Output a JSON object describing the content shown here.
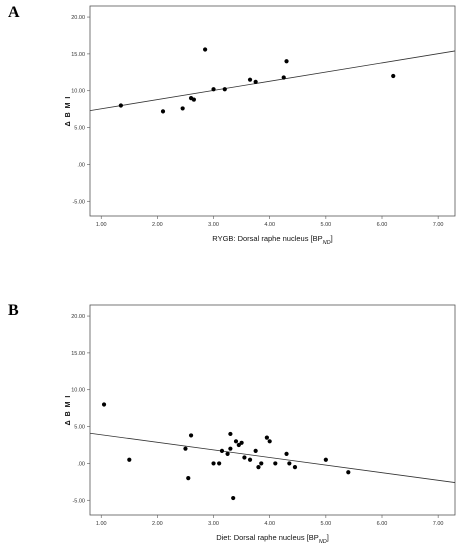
{
  "chart_data": [
    {
      "panel_letter": "A",
      "type": "scatter",
      "xlabel": "RYGB: Dorsal raphe nucleus [BP",
      "xlabel_sub": "ND",
      "xlabel_end": "]",
      "ylabel": "Δ B M I",
      "xlim": [
        0.8,
        7.3
      ],
      "ylim": [
        -7.0,
        21.5
      ],
      "xticks": [
        1.0,
        2.0,
        3.0,
        4.0,
        5.0,
        6.0,
        7.0
      ],
      "xtick_labels": [
        "1.00",
        "2.00",
        "3.00",
        "4.00",
        "5.00",
        "6.00",
        "7.00"
      ],
      "yticks": [
        -5.0,
        0.0,
        5.0,
        10.0,
        15.0,
        20.0
      ],
      "ytick_labels": [
        "-5.00",
        ".00",
        "5.00",
        "10.00",
        "15.00",
        "20.00"
      ],
      "points": [
        {
          "x": 1.35,
          "y": 8.0
        },
        {
          "x": 2.1,
          "y": 7.2
        },
        {
          "x": 2.45,
          "y": 7.6
        },
        {
          "x": 2.6,
          "y": 9.0
        },
        {
          "x": 2.65,
          "y": 8.8
        },
        {
          "x": 2.85,
          "y": 15.6
        },
        {
          "x": 3.0,
          "y": 10.2
        },
        {
          "x": 3.2,
          "y": 10.2
        },
        {
          "x": 3.65,
          "y": 11.5
        },
        {
          "x": 3.75,
          "y": 11.2
        },
        {
          "x": 4.25,
          "y": 11.8
        },
        {
          "x": 4.3,
          "y": 14.0
        },
        {
          "x": 6.2,
          "y": 12.0
        }
      ],
      "fit_line": {
        "x": [
          0.8,
          7.3
        ],
        "y": [
          7.3,
          15.4
        ]
      }
    },
    {
      "panel_letter": "B",
      "type": "scatter",
      "xlabel": "Diet: Dorsal raphe nucleus [BP",
      "xlabel_sub": "ND",
      "xlabel_end": "]",
      "ylabel": "Δ B M I",
      "xlim": [
        0.8,
        7.3
      ],
      "ylim": [
        -7.0,
        21.5
      ],
      "xticks": [
        1.0,
        2.0,
        3.0,
        4.0,
        5.0,
        6.0,
        7.0
      ],
      "xtick_labels": [
        "1.00",
        "2.00",
        "3.00",
        "4.00",
        "5.00",
        "6.00",
        "7.00"
      ],
      "yticks": [
        -5.0,
        0.0,
        5.0,
        10.0,
        15.0,
        20.0
      ],
      "ytick_labels": [
        "-5.00",
        ".00",
        "5.00",
        "10.00",
        "15.00",
        "20.00"
      ],
      "points": [
        {
          "x": 1.05,
          "y": 8.0
        },
        {
          "x": 1.5,
          "y": 0.5
        },
        {
          "x": 2.5,
          "y": 2.0
        },
        {
          "x": 2.55,
          "y": -2.0
        },
        {
          "x": 2.6,
          "y": 3.8
        },
        {
          "x": 3.0,
          "y": 0.0
        },
        {
          "x": 3.1,
          "y": 0.0
        },
        {
          "x": 3.15,
          "y": 1.7
        },
        {
          "x": 3.25,
          "y": 1.3
        },
        {
          "x": 3.3,
          "y": 2.0
        },
        {
          "x": 3.3,
          "y": 4.0
        },
        {
          "x": 3.35,
          "y": -4.7
        },
        {
          "x": 3.4,
          "y": 3.0
        },
        {
          "x": 3.45,
          "y": 2.5
        },
        {
          "x": 3.5,
          "y": 2.8
        },
        {
          "x": 3.55,
          "y": 0.8
        },
        {
          "x": 3.65,
          "y": 0.5
        },
        {
          "x": 3.75,
          "y": 1.7
        },
        {
          "x": 3.8,
          "y": -0.5
        },
        {
          "x": 3.85,
          "y": 0.0
        },
        {
          "x": 3.95,
          "y": 3.5
        },
        {
          "x": 4.0,
          "y": 3.0
        },
        {
          "x": 4.1,
          "y": 0.0
        },
        {
          "x": 4.3,
          "y": 1.3
        },
        {
          "x": 4.35,
          "y": 0.0
        },
        {
          "x": 4.45,
          "y": -0.5
        },
        {
          "x": 5.0,
          "y": 0.5
        },
        {
          "x": 5.4,
          "y": -1.2
        }
      ],
      "fit_line": {
        "x": [
          0.8,
          7.3
        ],
        "y": [
          4.1,
          -2.6
        ]
      }
    }
  ]
}
